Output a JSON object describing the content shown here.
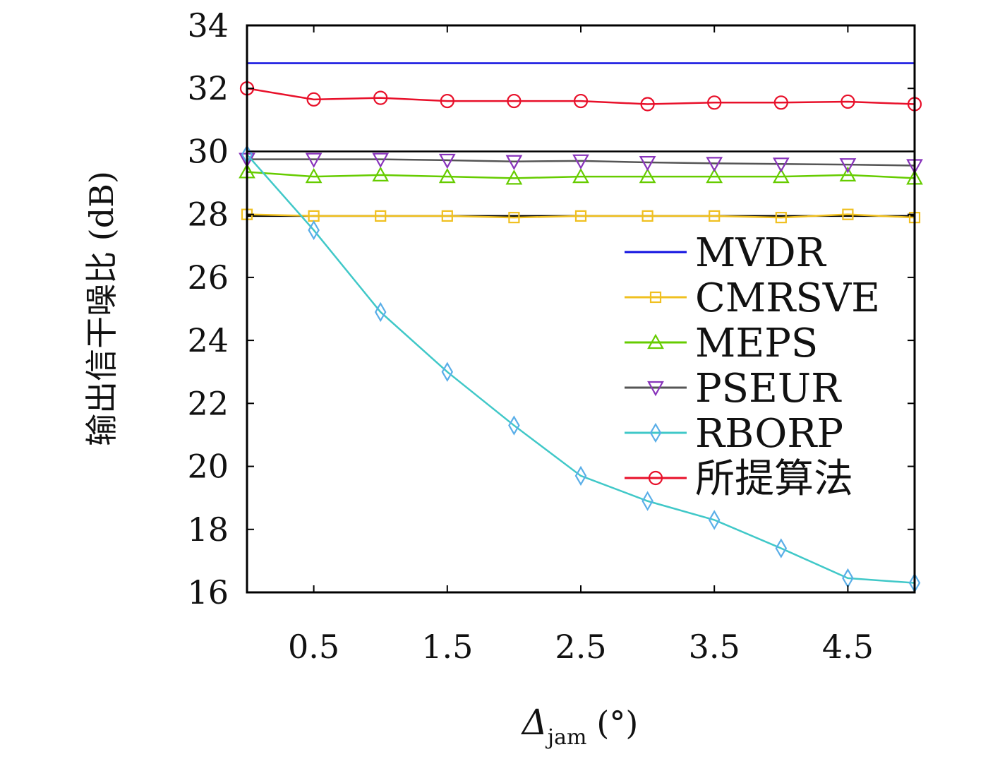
{
  "chart_data": {
    "type": "line",
    "xlabel_main": "Δ",
    "xlabel_sub": "jam",
    "xlabel_unit": "(°)",
    "ylabel": "输出信干噪比 (dB)",
    "xlim": [
      0,
      5
    ],
    "ylim": [
      16,
      34
    ],
    "xticks": [
      0.5,
      1.5,
      2.5,
      3.5,
      4.5
    ],
    "yticks": [
      16,
      18,
      20,
      22,
      24,
      26,
      28,
      30,
      32,
      34
    ],
    "grid": false,
    "legend_position": "right",
    "x": [
      0,
      0.5,
      1,
      1.5,
      2,
      2.5,
      3,
      3.5,
      4,
      4.5,
      5
    ],
    "series": [
      {
        "name": "MVDR",
        "color": "#1010e0",
        "marker": "none",
        "values": [
          32.8,
          32.8,
          32.8,
          32.8,
          32.8,
          32.8,
          32.8,
          32.8,
          32.8,
          32.8,
          32.8
        ]
      },
      {
        "name": "CMRSVE",
        "color": "#f0c020",
        "marker": "square",
        "values": [
          28.0,
          27.95,
          27.95,
          27.95,
          27.9,
          27.95,
          27.95,
          27.95,
          27.9,
          28.0,
          27.9
        ]
      },
      {
        "name": "MEPS",
        "color": "#66cc00",
        "marker": "triangle-up",
        "values": [
          29.35,
          29.2,
          29.25,
          29.2,
          29.15,
          29.2,
          29.2,
          29.2,
          29.2,
          29.25,
          29.15
        ]
      },
      {
        "name": "PSEUR",
        "color": "#555555",
        "marker": "triangle-down",
        "marker_color": "#8833bb",
        "values": [
          29.75,
          29.75,
          29.75,
          29.72,
          29.68,
          29.7,
          29.65,
          29.62,
          29.6,
          29.58,
          29.55
        ]
      },
      {
        "name": "RBORP",
        "color": "#40c8c8",
        "marker": "diamond",
        "marker_color": "#5aaee8",
        "values": [
          29.9,
          27.5,
          24.9,
          23.0,
          21.3,
          19.7,
          18.9,
          18.3,
          17.4,
          16.45,
          16.3
        ]
      },
      {
        "name": "所提算法",
        "color": "#e8102a",
        "marker": "circle",
        "values": [
          32.0,
          31.65,
          31.7,
          31.6,
          31.6,
          31.6,
          31.5,
          31.55,
          31.55,
          31.58,
          31.5
        ]
      }
    ],
    "extra_lines": [
      {
        "color": "#000000",
        "values": [
          30.0,
          30.0,
          30.0,
          30.0,
          30.0,
          30.0,
          30.0,
          30.0,
          30.0,
          30.0,
          30.0
        ]
      },
      {
        "color": "#000000",
        "values": [
          27.95,
          27.95,
          27.95,
          27.95,
          27.95,
          27.95,
          27.95,
          27.95,
          27.95,
          27.95,
          27.95
        ]
      }
    ]
  }
}
